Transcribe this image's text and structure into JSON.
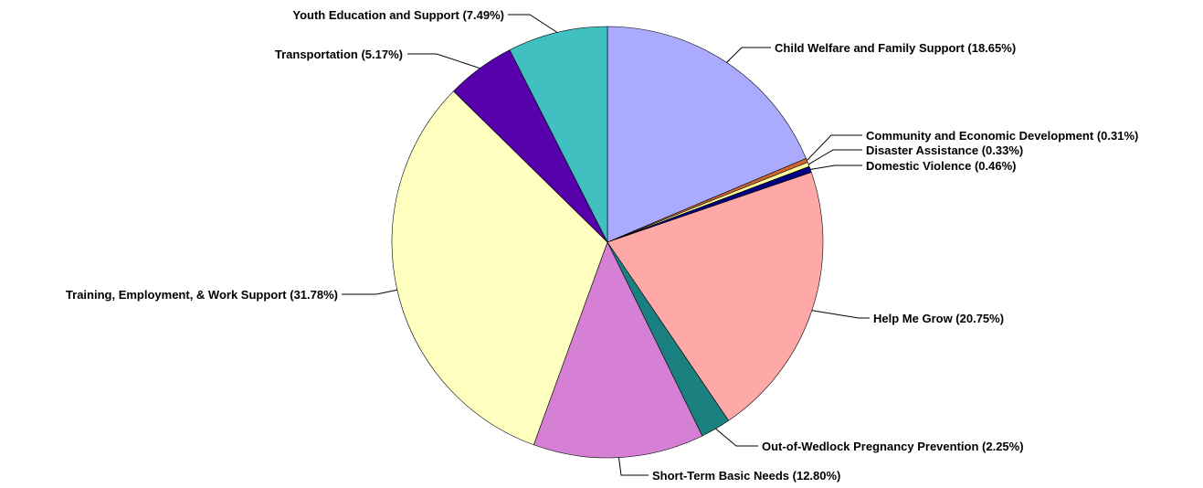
{
  "chart_data": {
    "type": "pie",
    "title": "",
    "start": "12 o'clock",
    "direction": "clockwise",
    "slices": [
      {
        "key": "child-welfare",
        "label": "Child Welfare and Family Support (18.65%)",
        "value": 18.65,
        "color": "#AAAAFF"
      },
      {
        "key": "community-economic",
        "label": "Community and Economic Development (0.31%)",
        "value": 0.31,
        "color": "#CC6633"
      },
      {
        "key": "disaster-assistance",
        "label": "Disaster Assistance (0.33%)",
        "value": 0.33,
        "color": "#FFFF99"
      },
      {
        "key": "domestic-violence",
        "label": "Domestic Violence (0.46%)",
        "value": 0.46,
        "color": "#000080"
      },
      {
        "key": "help-me-grow",
        "label": "Help Me Grow (20.75%)",
        "value": 20.75,
        "color": "#FFA8A8"
      },
      {
        "key": "out-of-wedlock",
        "label": "Out-of-Wedlock Pregnancy Prevention   (2.25%)",
        "value": 2.25,
        "color": "#1A8080"
      },
      {
        "key": "short-term-needs",
        "label": "Short-Term Basic Needs (12.80%)",
        "value": 12.8,
        "color": "#D580D5"
      },
      {
        "key": "training-employment",
        "label": "Training, Employment, & Work Support (31.78%)",
        "value": 31.78,
        "color": "#FFFFC0"
      },
      {
        "key": "transportation",
        "label": "Transportation  (5.17%)",
        "value": 5.17,
        "color": "#5500AA"
      },
      {
        "key": "youth-education",
        "label": "Youth Education and Support  (7.49%)",
        "value": 7.49,
        "color": "#40C0C0"
      }
    ]
  }
}
